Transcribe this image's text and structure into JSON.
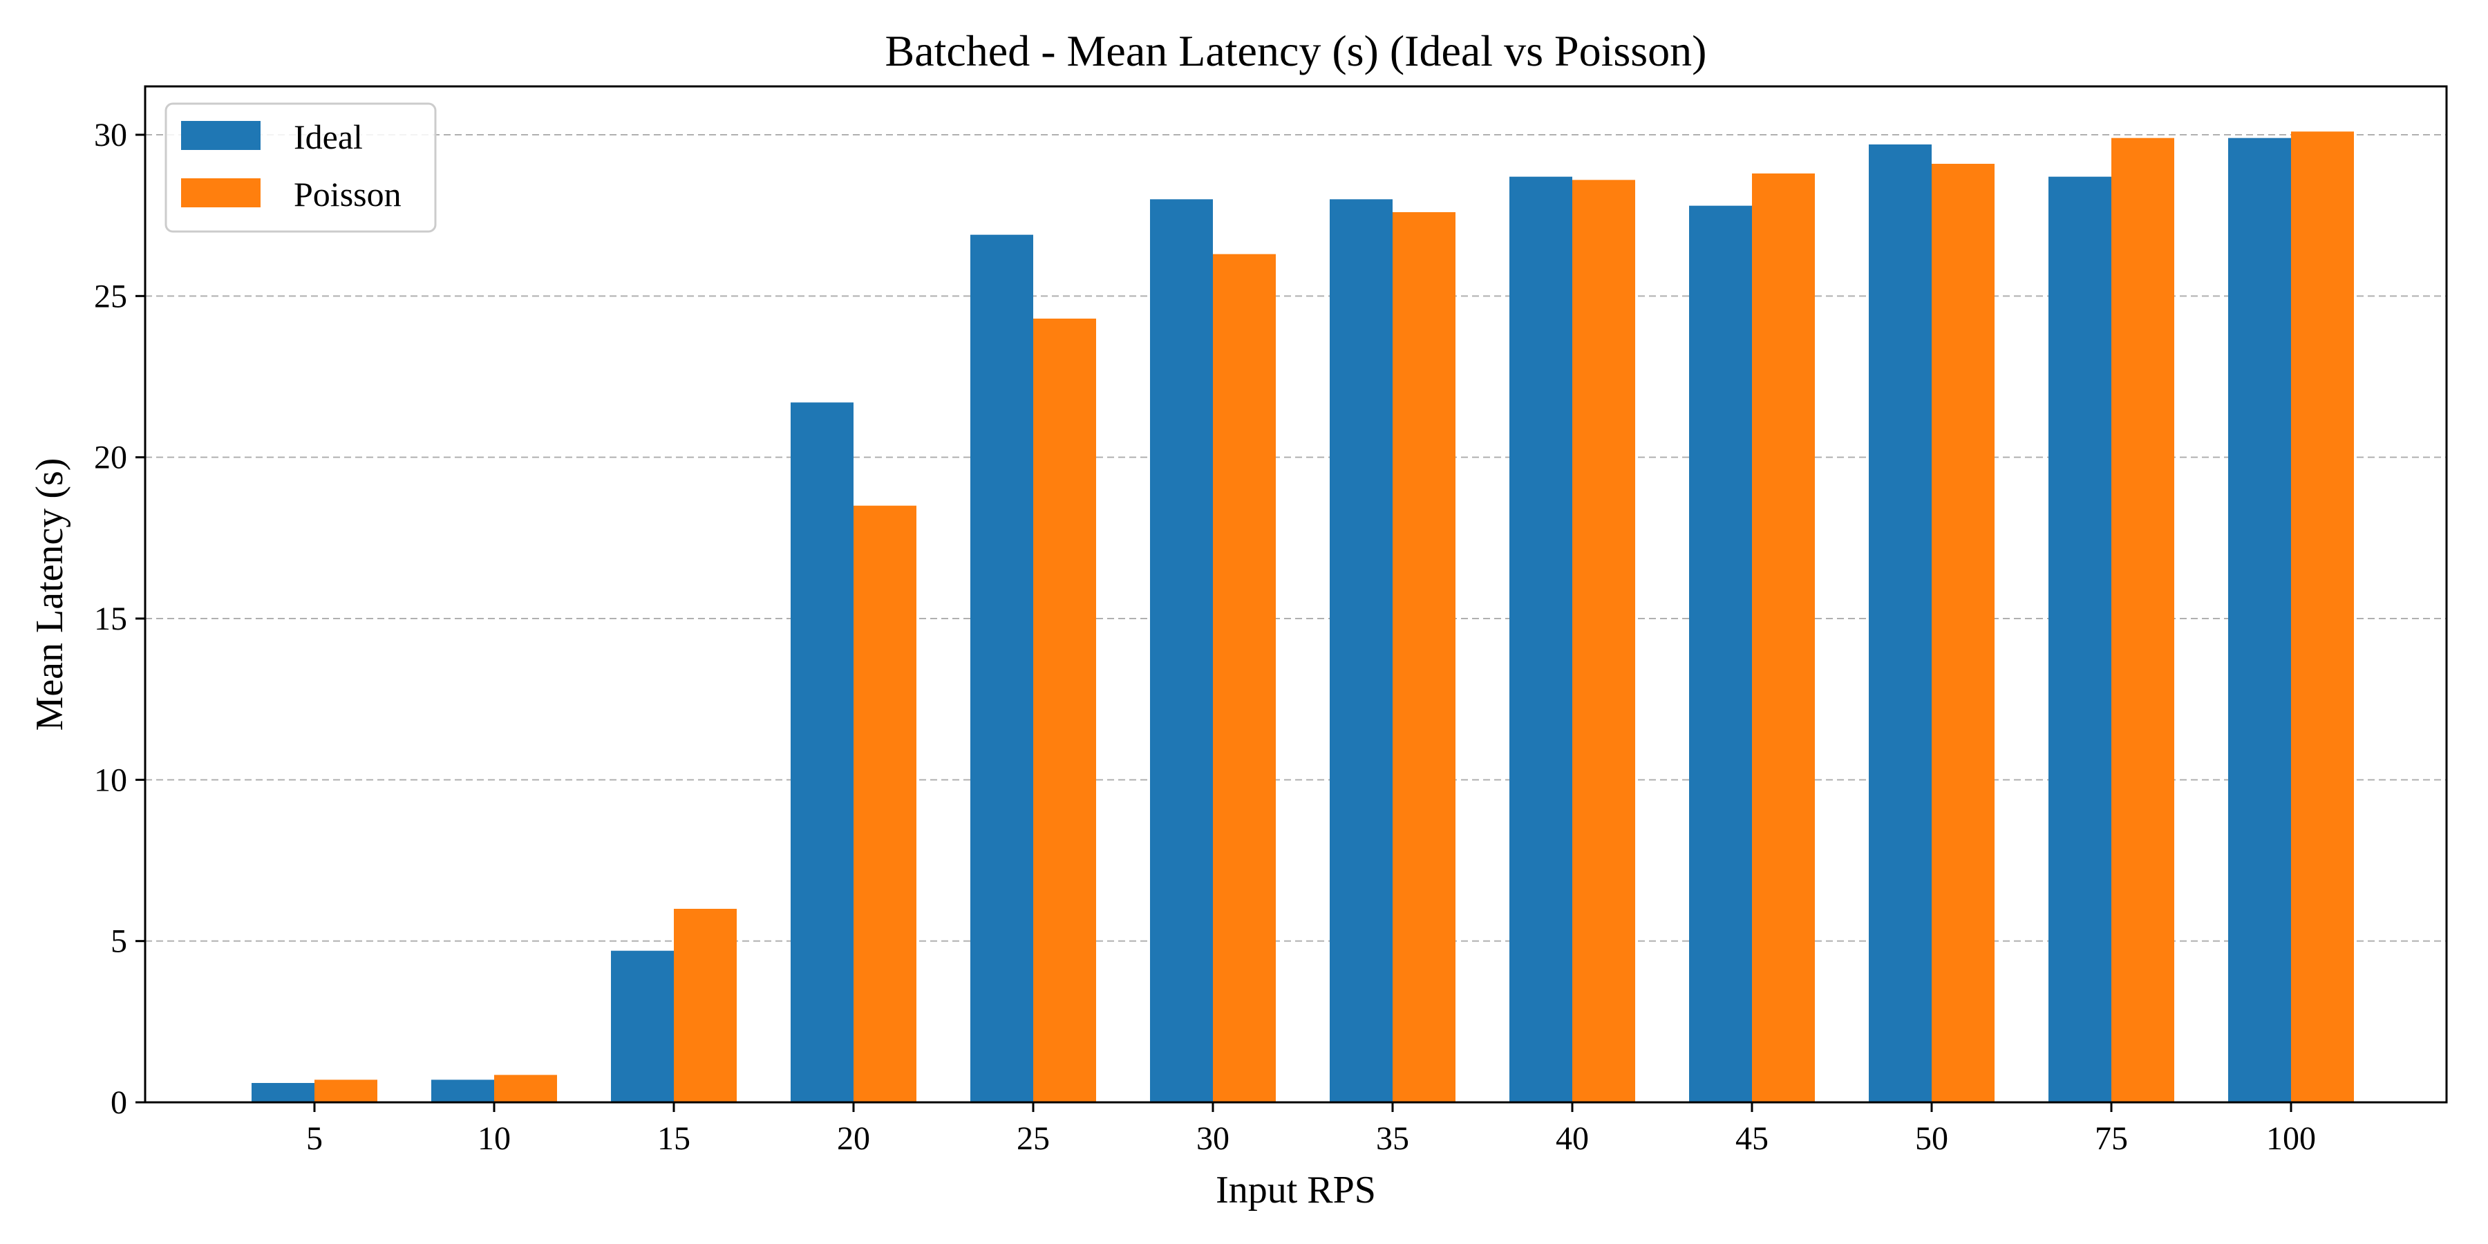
{
  "chart_data": {
    "type": "bar",
    "title": "Batched - Mean Latency (s) (Ideal vs Poisson)",
    "xlabel": "Input RPS",
    "ylabel": "Mean Latency (s)",
    "categories": [
      "5",
      "10",
      "15",
      "20",
      "25",
      "30",
      "35",
      "40",
      "45",
      "50",
      "75",
      "100"
    ],
    "series": [
      {
        "name": "Ideal",
        "color": "#1f77b4",
        "values": [
          0.6,
          0.7,
          4.7,
          21.7,
          26.9,
          28.0,
          28.0,
          28.7,
          27.8,
          29.7,
          28.7,
          29.9
        ]
      },
      {
        "name": "Poisson",
        "color": "#ff7f0e",
        "values": [
          0.7,
          0.85,
          6.0,
          18.5,
          24.3,
          26.3,
          27.6,
          28.6,
          28.8,
          29.1,
          29.9,
          30.1
        ]
      }
    ],
    "ylim": [
      0,
      31.5
    ],
    "yticks": [
      "0",
      "5",
      "10",
      "15",
      "20",
      "25",
      "30"
    ],
    "grid": "y-dashed",
    "legend": "top-left"
  }
}
